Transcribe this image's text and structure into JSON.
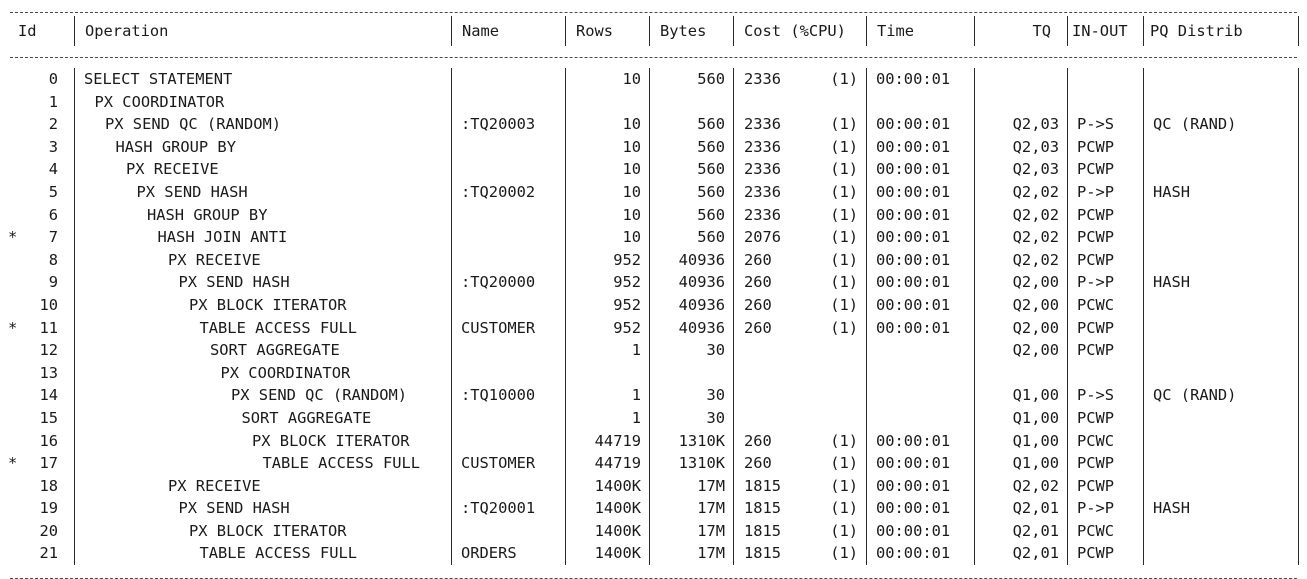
{
  "headers": {
    "id": "Id",
    "operation": "Operation",
    "name": "Name",
    "rows": "Rows",
    "bytes": "Bytes",
    "cost": "Cost (%CPU)",
    "time": "Time",
    "tq": "TQ",
    "inout": "IN-OUT",
    "pq": "PQ Distrib"
  },
  "rows": [
    {
      "star": "",
      "id": "0",
      "indent": 0,
      "op": "SELECT STATEMENT",
      "name": "",
      "rows": "10",
      "bytes": "560",
      "cost": "2336",
      "cpu": "(1)",
      "time": "00:00:01",
      "tq": "",
      "inout": "",
      "pq": ""
    },
    {
      "star": "",
      "id": "1",
      "indent": 1,
      "op": "PX COORDINATOR",
      "name": "",
      "rows": "",
      "bytes": "",
      "cost": "",
      "cpu": "",
      "time": "",
      "tq": "",
      "inout": "",
      "pq": ""
    },
    {
      "star": "",
      "id": "2",
      "indent": 2,
      "op": "PX SEND QC (RANDOM)",
      "name": ":TQ20003",
      "rows": "10",
      "bytes": "560",
      "cost": "2336",
      "cpu": "(1)",
      "time": "00:00:01",
      "tq": "Q2,03",
      "inout": "P->S",
      "pq": "QC (RAND)"
    },
    {
      "star": "",
      "id": "3",
      "indent": 3,
      "op": "HASH GROUP BY",
      "name": "",
      "rows": "10",
      "bytes": "560",
      "cost": "2336",
      "cpu": "(1)",
      "time": "00:00:01",
      "tq": "Q2,03",
      "inout": "PCWP",
      "pq": ""
    },
    {
      "star": "",
      "id": "4",
      "indent": 4,
      "op": "PX RECEIVE",
      "name": "",
      "rows": "10",
      "bytes": "560",
      "cost": "2336",
      "cpu": "(1)",
      "time": "00:00:01",
      "tq": "Q2,03",
      "inout": "PCWP",
      "pq": ""
    },
    {
      "star": "",
      "id": "5",
      "indent": 5,
      "op": "PX SEND HASH",
      "name": ":TQ20002",
      "rows": "10",
      "bytes": "560",
      "cost": "2336",
      "cpu": "(1)",
      "time": "00:00:01",
      "tq": "Q2,02",
      "inout": "P->P",
      "pq": "HASH"
    },
    {
      "star": "",
      "id": "6",
      "indent": 6,
      "op": "HASH GROUP BY",
      "name": "",
      "rows": "10",
      "bytes": "560",
      "cost": "2336",
      "cpu": "(1)",
      "time": "00:00:01",
      "tq": "Q2,02",
      "inout": "PCWP",
      "pq": ""
    },
    {
      "star": "*",
      "id": "7",
      "indent": 7,
      "op": "HASH JOIN ANTI",
      "name": "",
      "rows": "10",
      "bytes": "560",
      "cost": "2076",
      "cpu": "(1)",
      "time": "00:00:01",
      "tq": "Q2,02",
      "inout": "PCWP",
      "pq": ""
    },
    {
      "star": "",
      "id": "8",
      "indent": 8,
      "op": "PX RECEIVE",
      "name": "",
      "rows": "952",
      "bytes": "40936",
      "cost": "260",
      "cpu": "(1)",
      "time": "00:00:01",
      "tq": "Q2,02",
      "inout": "PCWP",
      "pq": ""
    },
    {
      "star": "",
      "id": "9",
      "indent": 9,
      "op": "PX SEND HASH",
      "name": ":TQ20000",
      "rows": "952",
      "bytes": "40936",
      "cost": "260",
      "cpu": "(1)",
      "time": "00:00:01",
      "tq": "Q2,00",
      "inout": "P->P",
      "pq": "HASH"
    },
    {
      "star": "",
      "id": "10",
      "indent": 10,
      "op": "PX BLOCK ITERATOR",
      "name": "",
      "rows": "952",
      "bytes": "40936",
      "cost": "260",
      "cpu": "(1)",
      "time": "00:00:01",
      "tq": "Q2,00",
      "inout": "PCWC",
      "pq": ""
    },
    {
      "star": "*",
      "id": "11",
      "indent": 11,
      "op": "TABLE ACCESS FULL",
      "name": "CUSTOMER",
      "rows": "952",
      "bytes": "40936",
      "cost": "260",
      "cpu": "(1)",
      "time": "00:00:01",
      "tq": "Q2,00",
      "inout": "PCWP",
      "pq": ""
    },
    {
      "star": "",
      "id": "12",
      "indent": 12,
      "op": "SORT AGGREGATE",
      "name": "",
      "rows": "1",
      "bytes": "30",
      "cost": "",
      "cpu": "",
      "time": "",
      "tq": "Q2,00",
      "inout": "PCWP",
      "pq": ""
    },
    {
      "star": "",
      "id": "13",
      "indent": 13,
      "op": "PX COORDINATOR",
      "name": "",
      "rows": "",
      "bytes": "",
      "cost": "",
      "cpu": "",
      "time": "",
      "tq": "",
      "inout": "",
      "pq": ""
    },
    {
      "star": "",
      "id": "14",
      "indent": 14,
      "op": "PX SEND QC (RANDOM)",
      "name": ":TQ10000",
      "rows": "1",
      "bytes": "30",
      "cost": "",
      "cpu": "",
      "time": "",
      "tq": "Q1,00",
      "inout": "P->S",
      "pq": "QC (RAND)"
    },
    {
      "star": "",
      "id": "15",
      "indent": 15,
      "op": "SORT AGGREGATE",
      "name": "",
      "rows": "1",
      "bytes": "30",
      "cost": "",
      "cpu": "",
      "time": "",
      "tq": "Q1,00",
      "inout": "PCWP",
      "pq": ""
    },
    {
      "star": "",
      "id": "16",
      "indent": 16,
      "op": "PX BLOCK ITERATOR",
      "name": "",
      "rows": "44719",
      "bytes": "1310K",
      "cost": "260",
      "cpu": "(1)",
      "time": "00:00:01",
      "tq": "Q1,00",
      "inout": "PCWC",
      "pq": ""
    },
    {
      "star": "*",
      "id": "17",
      "indent": 17,
      "op": "TABLE ACCESS FULL",
      "name": "CUSTOMER",
      "rows": "44719",
      "bytes": "1310K",
      "cost": "260",
      "cpu": "(1)",
      "time": "00:00:01",
      "tq": "Q1,00",
      "inout": "PCWP",
      "pq": ""
    },
    {
      "star": "",
      "id": "18",
      "indent": 8,
      "op": "PX RECEIVE",
      "name": "",
      "rows": "1400K",
      "bytes": "17M",
      "cost": "1815",
      "cpu": "(1)",
      "time": "00:00:01",
      "tq": "Q2,02",
      "inout": "PCWP",
      "pq": ""
    },
    {
      "star": "",
      "id": "19",
      "indent": 9,
      "op": "PX SEND HASH",
      "name": ":TQ20001",
      "rows": "1400K",
      "bytes": "17M",
      "cost": "1815",
      "cpu": "(1)",
      "time": "00:00:01",
      "tq": "Q2,01",
      "inout": "P->P",
      "pq": "HASH"
    },
    {
      "star": "",
      "id": "20",
      "indent": 10,
      "op": "PX BLOCK ITERATOR",
      "name": "",
      "rows": "1400K",
      "bytes": "17M",
      "cost": "1815",
      "cpu": "(1)",
      "time": "00:00:01",
      "tq": "Q2,01",
      "inout": "PCWC",
      "pq": ""
    },
    {
      "star": "",
      "id": "21",
      "indent": 11,
      "op": "TABLE ACCESS FULL",
      "name": "ORDERS",
      "rows": "1400K",
      "bytes": "17M",
      "cost": "1815",
      "cpu": "(1)",
      "time": "00:00:01",
      "tq": "Q2,01",
      "inout": "PCWP",
      "pq": ""
    }
  ]
}
